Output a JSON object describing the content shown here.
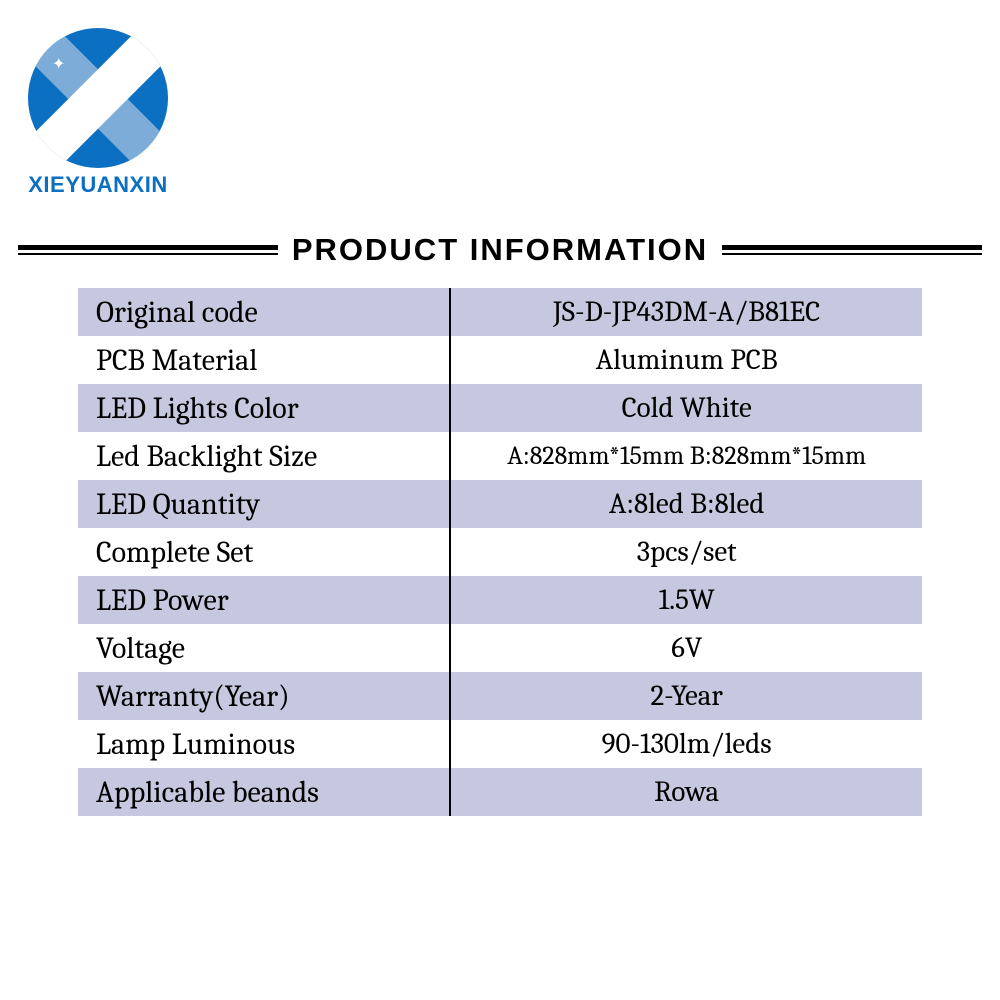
{
  "brand": {
    "name": "XIEYUANXIN"
  },
  "section_title": "PRODUCT INFORMATION",
  "colors": {
    "brand_blue": "#0b6fc2",
    "stripe": "#c6c8df",
    "text": "#000000",
    "background": "#ffffff"
  },
  "rows": [
    {
      "label": "Original code",
      "value": "JS-D-JP43DM-A/B81EC"
    },
    {
      "label": "PCB Material",
      "value": "Aluminum PCB"
    },
    {
      "label": "LED Lights Color",
      "value": "Cold White"
    },
    {
      "label": "Led Backlight Size",
      "value": "A:828mm*15mm  B:828mm*15mm",
      "small": true
    },
    {
      "label": "LED Quantity",
      "value": "A:8led  B:8led"
    },
    {
      "label": "Complete Set",
      "value": "3pcs/set"
    },
    {
      "label": "LED Power",
      "value": "1.5W"
    },
    {
      "label": "Voltage",
      "value": "6V"
    },
    {
      "label": "Warranty(Year)",
      "value": "2-Year"
    },
    {
      "label": "Lamp Luminous",
      "value": "90-130lm/leds"
    },
    {
      "label": "Applicable beands",
      "value": "Rowa"
    }
  ]
}
